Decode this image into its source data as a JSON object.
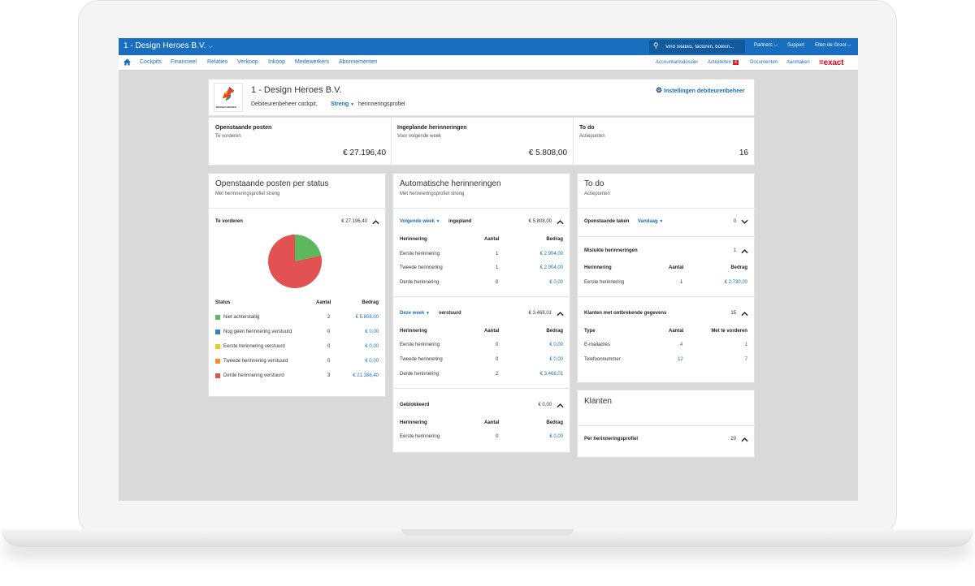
{
  "topbar": {
    "company": "1 - Design Heroes B.V.",
    "search_placeholder": "Vind relaties, facturen, boekin...",
    "links": [
      "Partners",
      "Support",
      "Ellen de Groot"
    ]
  },
  "nav": {
    "items": [
      "Cockpits",
      "Financieel",
      "Relaties",
      "Verkoop",
      "Inkoop",
      "Medewerkers",
      "Abonnementen"
    ],
    "right": [
      "Accountantsdossier",
      "Activiteiten",
      "Documenten",
      "Aanmaken"
    ],
    "activities_badge": "4",
    "logo": "=exact"
  },
  "header": {
    "title": "1 - Design Heroes B.V.",
    "subtitle": "Debiteurenbeheer cockpit,",
    "profile": "Streng",
    "profile_suffix": "herinneringsprofiel",
    "settings_link": "Instellingen debiteurenbeheer",
    "logo_text": "DESIGN HEROES"
  },
  "summary": [
    {
      "title": "Openstaande posten",
      "sub": "Te vorderen",
      "value": "€ 27.196,40"
    },
    {
      "title": "Ingeplande herinneringen",
      "sub": "Voor volgende week",
      "value": "€ 5.808,00"
    },
    {
      "title": "To do",
      "sub": "Actiepunten",
      "value": "16"
    }
  ],
  "status_card": {
    "title": "Openstaande posten per status",
    "sub": "Met herinneringsprofiel streng",
    "row_label": "Te vorderen",
    "row_value": "€ 27.196,40",
    "headers": [
      "Status",
      "Aantal",
      "Bedrag"
    ],
    "rows": [
      {
        "label": "Niet achterstallig",
        "count": "2",
        "amount": "€ 5.808,00",
        "color": "#5cb85c"
      },
      {
        "label": "Nog geen herinnering verstuurd",
        "count": "0",
        "amount": "€ 0,00",
        "color": "#2f7fc1"
      },
      {
        "label": "Eerste herinnering verstuurd",
        "count": "0",
        "amount": "€ 0,00",
        "color": "#f2c523"
      },
      {
        "label": "Tweede herinnering verstuurd",
        "count": "0",
        "amount": "€ 0,00",
        "color": "#f0902c"
      },
      {
        "label": "Derde herinnering verstuurd",
        "count": "3",
        "amount": "€ 21.388,40",
        "color": "#e25252"
      }
    ]
  },
  "reminders_card": {
    "title": "Automatische herinneringen",
    "sub": "Met herinneringsprofiel streng",
    "headers": [
      "Herinnering",
      "Aantal",
      "Bedrag"
    ],
    "sections": [
      {
        "period": "Volgende week",
        "status": "ingepland",
        "total": "€ 5.808,00",
        "rows": [
          {
            "label": "Eerste herinnering",
            "count": "1",
            "amount": "€ 2.904,00"
          },
          {
            "label": "Tweede herinnering",
            "count": "1",
            "amount": "€ 2.904,00"
          },
          {
            "label": "Derde herinnering",
            "count": "0",
            "amount": "€ 0,00"
          }
        ]
      },
      {
        "period": "Deze week",
        "status": "verstuurd",
        "total": "€ 3.468,01",
        "rows": [
          {
            "label": "Eerste herinnering",
            "count": "0",
            "amount": "€ 0,00"
          },
          {
            "label": "Tweede herinnering",
            "count": "0",
            "amount": "€ 0,00"
          },
          {
            "label": "Derde herinnering",
            "count": "2",
            "amount": "€ 3.468,01"
          }
        ]
      },
      {
        "period": "Geblokkeerd",
        "total": "€ 0,00",
        "rows": [
          {
            "label": "Eerste herinnering",
            "count": "0",
            "amount": "€ 0,00"
          }
        ]
      }
    ]
  },
  "todo_card": {
    "title": "To do",
    "sub": "Actiepunten",
    "open_tasks": {
      "label": "Openstaande taken",
      "filter": "Vandaag",
      "count": "0"
    },
    "failed": {
      "label": "Mislukte herinneringen",
      "count": "1",
      "headers": [
        "Herinnering",
        "Aantal",
        "Bedrag"
      ],
      "row": {
        "label": "Eerste herinnering",
        "count": "1",
        "amount": "€ 2.730,00"
      }
    },
    "missing": {
      "label": "Klanten met ontbrekende gegevens",
      "count": "15",
      "headers": [
        "Type",
        "Aantal",
        "Met te vorderen"
      ],
      "rows": [
        {
          "label": "E-mailadres",
          "count": "4",
          "due": "1"
        },
        {
          "label": "Telefoonnummer",
          "count": "12",
          "due": "7"
        }
      ]
    }
  },
  "clients_card": {
    "title": "Klanten",
    "row_label": "Per herinneringsprofiel",
    "row_count": "20"
  },
  "pie_chart": {
    "slices": [
      {
        "label": "Niet achterstallig",
        "value": 5808.0,
        "color": "#5cb85c"
      },
      {
        "label": "Derde herinnering verstuurd",
        "value": 21388.4,
        "color": "#e25252"
      }
    ]
  },
  "colors": {
    "brand_blue": "#1a6ebf",
    "exact_red": "#e1001a"
  }
}
